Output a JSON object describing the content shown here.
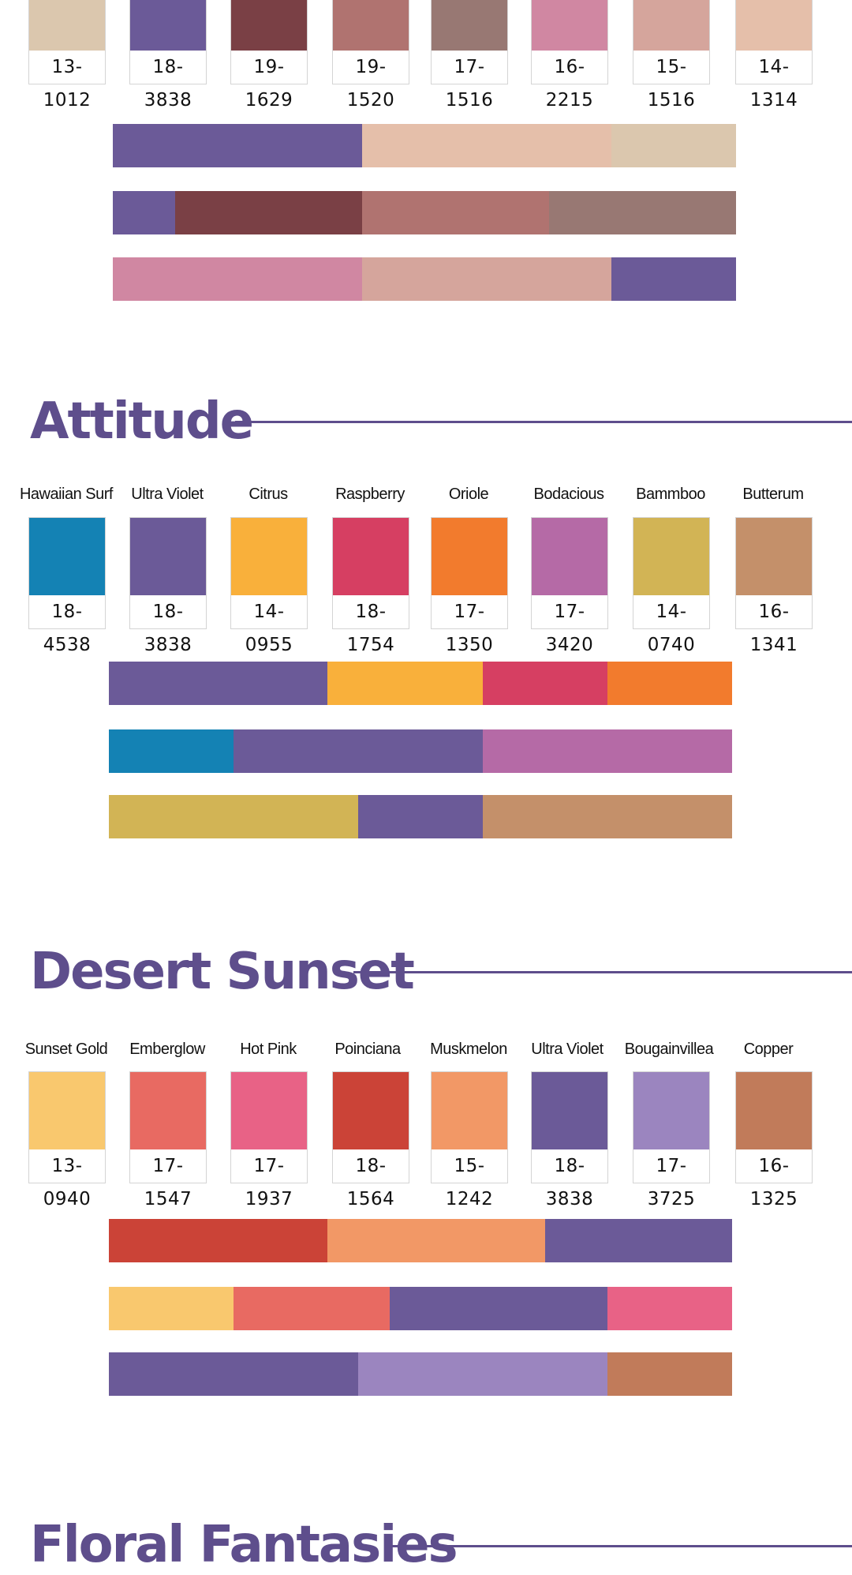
{
  "palettes": [
    {
      "title": "",
      "swatches": [
        {
          "name": "",
          "code": "13-1012",
          "color": "#dbc7ae"
        },
        {
          "name": "",
          "code": "18-3838",
          "color": "#6b5a98"
        },
        {
          "name": "",
          "code": "19-1629",
          "color": "#7a4045"
        },
        {
          "name": "",
          "code": "19-1520",
          "color": "#b07370"
        },
        {
          "name": "",
          "code": "17-1516",
          "color": "#987873"
        },
        {
          "name": "",
          "code": "16-2215",
          "color": "#d087a2"
        },
        {
          "name": "",
          "code": "15-1516",
          "color": "#d5a59c"
        },
        {
          "name": "",
          "code": "14-1314",
          "color": "#e5bfaa"
        }
      ],
      "bars": [
        [
          {
            "color": "#6b5a98",
            "weight": 4
          },
          {
            "color": "#e5bfaa",
            "weight": 4
          },
          {
            "color": "#dbc7ae",
            "weight": 2
          }
        ],
        [
          {
            "color": "#6b5a98",
            "weight": 1
          },
          {
            "color": "#7a4045",
            "weight": 3
          },
          {
            "color": "#b07370",
            "weight": 3
          },
          {
            "color": "#987873",
            "weight": 3
          }
        ],
        [
          {
            "color": "#d087a2",
            "weight": 4
          },
          {
            "color": "#d5a59c",
            "weight": 4
          },
          {
            "color": "#6b5a98",
            "weight": 2
          }
        ]
      ]
    },
    {
      "title": "Attitude",
      "swatches": [
        {
          "name": "Hawaiian Surf",
          "code": "18-4538",
          "color": "#1482b4"
        },
        {
          "name": "Ultra Violet",
          "code": "18-3838",
          "color": "#6b5a98"
        },
        {
          "name": "Citrus",
          "code": "14-0955",
          "color": "#f9b03b"
        },
        {
          "name": "Raspberry",
          "code": "18-1754",
          "color": "#d63f62"
        },
        {
          "name": "Oriole",
          "code": "17-1350",
          "color": "#f27b2d"
        },
        {
          "name": "Bodacious",
          "code": "17-3420",
          "color": "#b56aa6"
        },
        {
          "name": "Bammboo",
          "code": "14-0740",
          "color": "#d2b455"
        },
        {
          "name": "Butterum",
          "code": "16-1341",
          "color": "#c4906a"
        }
      ],
      "bars": [
        [
          {
            "color": "#6b5a98",
            "weight": 3.5
          },
          {
            "color": "#f9b03b",
            "weight": 2.5
          },
          {
            "color": "#d63f62",
            "weight": 2
          },
          {
            "color": "#f27b2d",
            "weight": 2
          }
        ],
        [
          {
            "color": "#1482b4",
            "weight": 2
          },
          {
            "color": "#6b5a98",
            "weight": 4
          },
          {
            "color": "#b56aa6",
            "weight": 4
          }
        ],
        [
          {
            "color": "#d2b455",
            "weight": 4
          },
          {
            "color": "#6b5a98",
            "weight": 2
          },
          {
            "color": "#c4906a",
            "weight": 4
          }
        ]
      ]
    },
    {
      "title": "Desert Sunset",
      "swatches": [
        {
          "name": "Sunset Gold",
          "code": "13-0940",
          "color": "#f9c86e"
        },
        {
          "name": "Emberglow",
          "code": "17-1547",
          "color": "#e86a62"
        },
        {
          "name": "Hot Pink",
          "code": "17-1937",
          "color": "#e86286"
        },
        {
          "name": "Poinciana",
          "code": "18-1564",
          "color": "#cb4337"
        },
        {
          "name": "Muskmelon",
          "code": "15-1242",
          "color": "#f29866"
        },
        {
          "name": "Ultra Violet",
          "code": "18-3838",
          "color": "#6b5a98"
        },
        {
          "name": "Bougainvillea",
          "code": "17-3725",
          "color": "#9b85bf"
        },
        {
          "name": "Copper",
          "code": "16-1325",
          "color": "#c17b5a"
        }
      ],
      "bars": [
        [
          {
            "color": "#cb4337",
            "weight": 3.5
          },
          {
            "color": "#f29866",
            "weight": 3.5
          },
          {
            "color": "#6b5a98",
            "weight": 3
          }
        ],
        [
          {
            "color": "#f9c86e",
            "weight": 2
          },
          {
            "color": "#e86a62",
            "weight": 2.5
          },
          {
            "color": "#6b5a98",
            "weight": 3.5
          },
          {
            "color": "#e86286",
            "weight": 2
          }
        ],
        [
          {
            "color": "#6b5a98",
            "weight": 4
          },
          {
            "color": "#9b85bf",
            "weight": 4
          },
          {
            "color": "#c17b5a",
            "weight": 2
          }
        ]
      ]
    },
    {
      "title": "Floral Fantasies",
      "swatches": [],
      "bars": []
    }
  ],
  "accent_color": "#5e4e8c"
}
